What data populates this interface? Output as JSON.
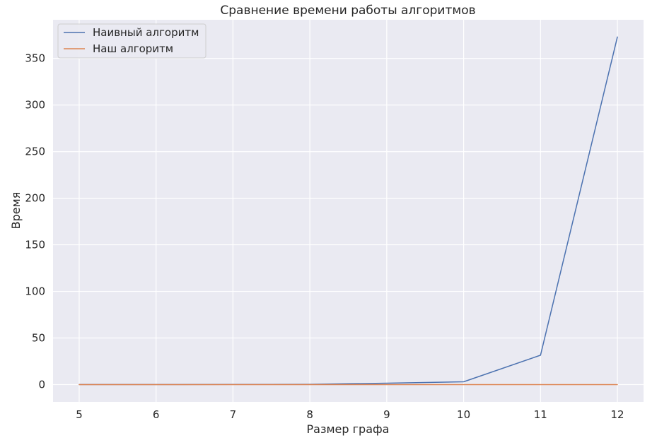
{
  "chart_data": {
    "type": "line",
    "title": "Сравнение времени работы алгоритмов",
    "xlabel": "Размер графа",
    "ylabel": "Время",
    "x": [
      5,
      6,
      7,
      8,
      9,
      10,
      11,
      12
    ],
    "xlim": [
      4.66,
      12.34
    ],
    "ylim": [
      -18.6,
      391.5
    ],
    "xticks": [
      5,
      6,
      7,
      8,
      9,
      10,
      11,
      12
    ],
    "yticks": [
      0,
      50,
      100,
      150,
      200,
      250,
      300,
      350
    ],
    "grid": true,
    "legend_position": "top-left",
    "series": [
      {
        "name": "Наивный алгоритм",
        "color": "#4c72b0",
        "values": [
          0.01,
          0.03,
          0.1,
          0.3,
          1.5,
          3.0,
          31.5,
          373
        ]
      },
      {
        "name": "Наш алгоритм",
        "color": "#dd8452",
        "values": [
          0.0,
          0.0,
          0.0,
          0.0,
          0.0,
          0.0,
          0.0,
          0.0
        ]
      }
    ]
  }
}
